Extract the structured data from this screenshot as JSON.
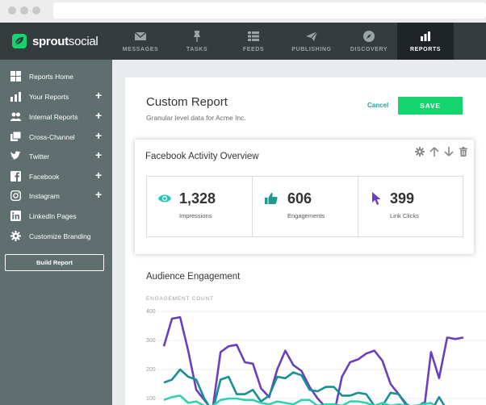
{
  "nav": {
    "brand_bold": "sprout",
    "brand_thin": "social",
    "items": [
      {
        "label": "MESSAGES",
        "icon": "envelope-icon"
      },
      {
        "label": "TASKS",
        "icon": "pin-icon"
      },
      {
        "label": "FEEDS",
        "icon": "feeds-icon"
      },
      {
        "label": "PUBLISHING",
        "icon": "paper-plane-icon"
      },
      {
        "label": "DISCOVERY",
        "icon": "compass-icon"
      },
      {
        "label": "REPORTS",
        "icon": "bar-chart-icon",
        "active": true
      }
    ]
  },
  "sidebar": {
    "items": [
      {
        "label": "Reports Home",
        "icon": "grid-icon",
        "plus": ""
      },
      {
        "label": "Your Reports",
        "icon": "bar-chart-icon",
        "plus": "+"
      },
      {
        "label": "Internal Reports",
        "icon": "users-icon",
        "plus": "+"
      },
      {
        "label": "Cross-Channel",
        "icon": "cards-icon",
        "plus": "+"
      },
      {
        "label": "Twitter",
        "icon": "twitter-icon",
        "plus": "+"
      },
      {
        "label": "Facebook",
        "icon": "facebook-icon",
        "plus": "+"
      },
      {
        "label": "Instagram",
        "icon": "instagram-icon",
        "plus": "+"
      },
      {
        "label": "LinkedIn Pages",
        "icon": "linkedin-icon",
        "plus": ""
      },
      {
        "label": "Customize Branding",
        "icon": "gear-icon",
        "plus": ""
      }
    ],
    "build_button": "Build Report"
  },
  "report": {
    "title": "Custom Report",
    "subtitle": "Granular level data for Acme Inc.",
    "cancel": "Cancel",
    "save": "SAVE"
  },
  "card": {
    "title": "Facebook Activity Overview",
    "metrics": [
      {
        "value": "1,328",
        "label": "Impressions",
        "icon": "eye-icon"
      },
      {
        "value": "606",
        "label": "Engagements",
        "icon": "thumbs-up-icon"
      },
      {
        "value": "399",
        "label": "Link Clicks",
        "icon": "cursor-icon"
      }
    ]
  },
  "engagement": {
    "title": "Audience Engagement",
    "ylabel": "ENGAGEMENT COUNT"
  },
  "colors": {
    "green": "#14d46e",
    "teal": "#1aa89a",
    "purple": "#6a3fbf",
    "nav": "#343c3e",
    "sidebar": "#5f6f70"
  },
  "chart_data": {
    "type": "line",
    "ylabel": "ENGAGEMENT COUNT",
    "yticks": [
      "400",
      "300",
      "200",
      "100"
    ],
    "ylim": [
      0,
      400
    ],
    "x": [
      0,
      1,
      2,
      3,
      4,
      5,
      6,
      7,
      8,
      9,
      10,
      11,
      12,
      13,
      14,
      15,
      16,
      17,
      18,
      19,
      20,
      21,
      22,
      23,
      24,
      25,
      26,
      27,
      28,
      29,
      30,
      31,
      32,
      33,
      34,
      35,
      36,
      37
    ],
    "series": [
      {
        "color": "#6a3fbf",
        "values": [
          280,
          375,
          380,
          265,
          130,
          95,
          60,
          260,
          280,
          285,
          225,
          220,
          135,
          105,
          200,
          265,
          215,
          195,
          140,
          100,
          70,
          45,
          175,
          225,
          235,
          255,
          265,
          230,
          150,
          115,
          75,
          70,
          30,
          260,
          170,
          310,
          305,
          310
        ]
      },
      {
        "color": "#178f94",
        "values": [
          155,
          165,
          200,
          175,
          165,
          100,
          55,
          165,
          175,
          115,
          115,
          130,
          90,
          110,
          175,
          170,
          190,
          180,
          130,
          125,
          140,
          140,
          110,
          110,
          120,
          115,
          75,
          75,
          120,
          115,
          80,
          65,
          85,
          55,
          105,
          60,
          70,
          55
        ]
      },
      {
        "color": "#2fd3b1",
        "values": [
          95,
          105,
          110,
          85,
          90,
          75,
          75,
          95,
          100,
          100,
          95,
          95,
          85,
          80,
          90,
          85,
          80,
          95,
          95,
          75,
          80,
          80,
          75,
          90,
          90,
          85,
          75,
          85,
          75,
          80,
          75,
          75,
          80,
          85,
          60,
          65,
          70,
          65
        ]
      }
    ]
  }
}
